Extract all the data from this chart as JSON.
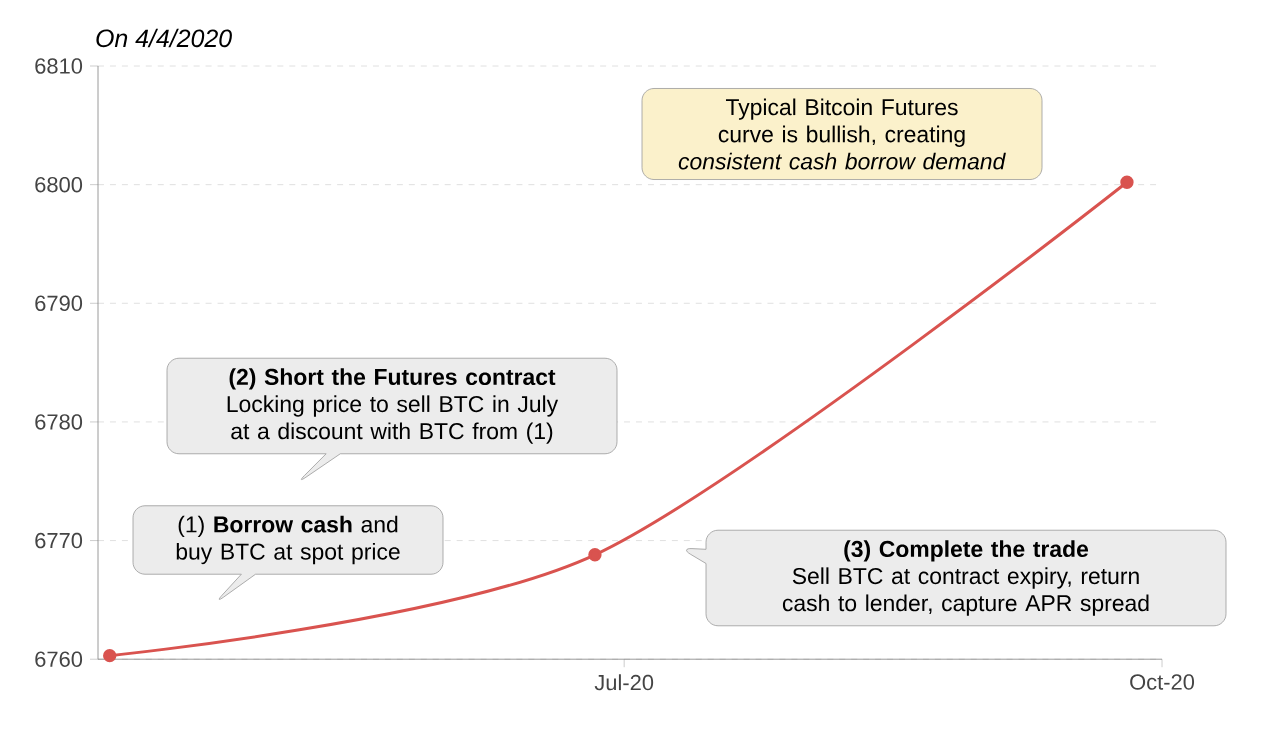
{
  "chart_data": {
    "type": "line",
    "title": "On 4/4/2020",
    "x": [
      "2020-04-04",
      "2020-06-26",
      "2020-09-25"
    ],
    "series": [
      {
        "color": "#d9534f",
        "values": [
          6760.3,
          6768.8,
          6800.2
        ]
      }
    ],
    "xlim": [
      "2020-04-02",
      "2020-10-01"
    ],
    "xticks": [
      {
        "value": "2020-07-01",
        "label": "Jul-20"
      },
      {
        "value": "2020-10-01",
        "label": "Oct-20"
      }
    ],
    "ylim": [
      6760,
      6810
    ],
    "yticks": [
      6760,
      6770,
      6780,
      6790,
      6800,
      6810
    ],
    "grid": "y",
    "marker": "circle",
    "line_style": "solid",
    "annotations": [
      "Typical Bitcoin Futures curve is bullish, creating *consistent cash borrow demand*",
      "(1) **Borrow cash** and buy BTC at spot price",
      "(2) Short the Futures contract",
      "Locking price to sell BTC in July at a discount with BTC from (1)",
      "(3) Complete the trade",
      "Sell BTC at contract expiry, return cash to lender, capture APR spread"
    ]
  }
}
